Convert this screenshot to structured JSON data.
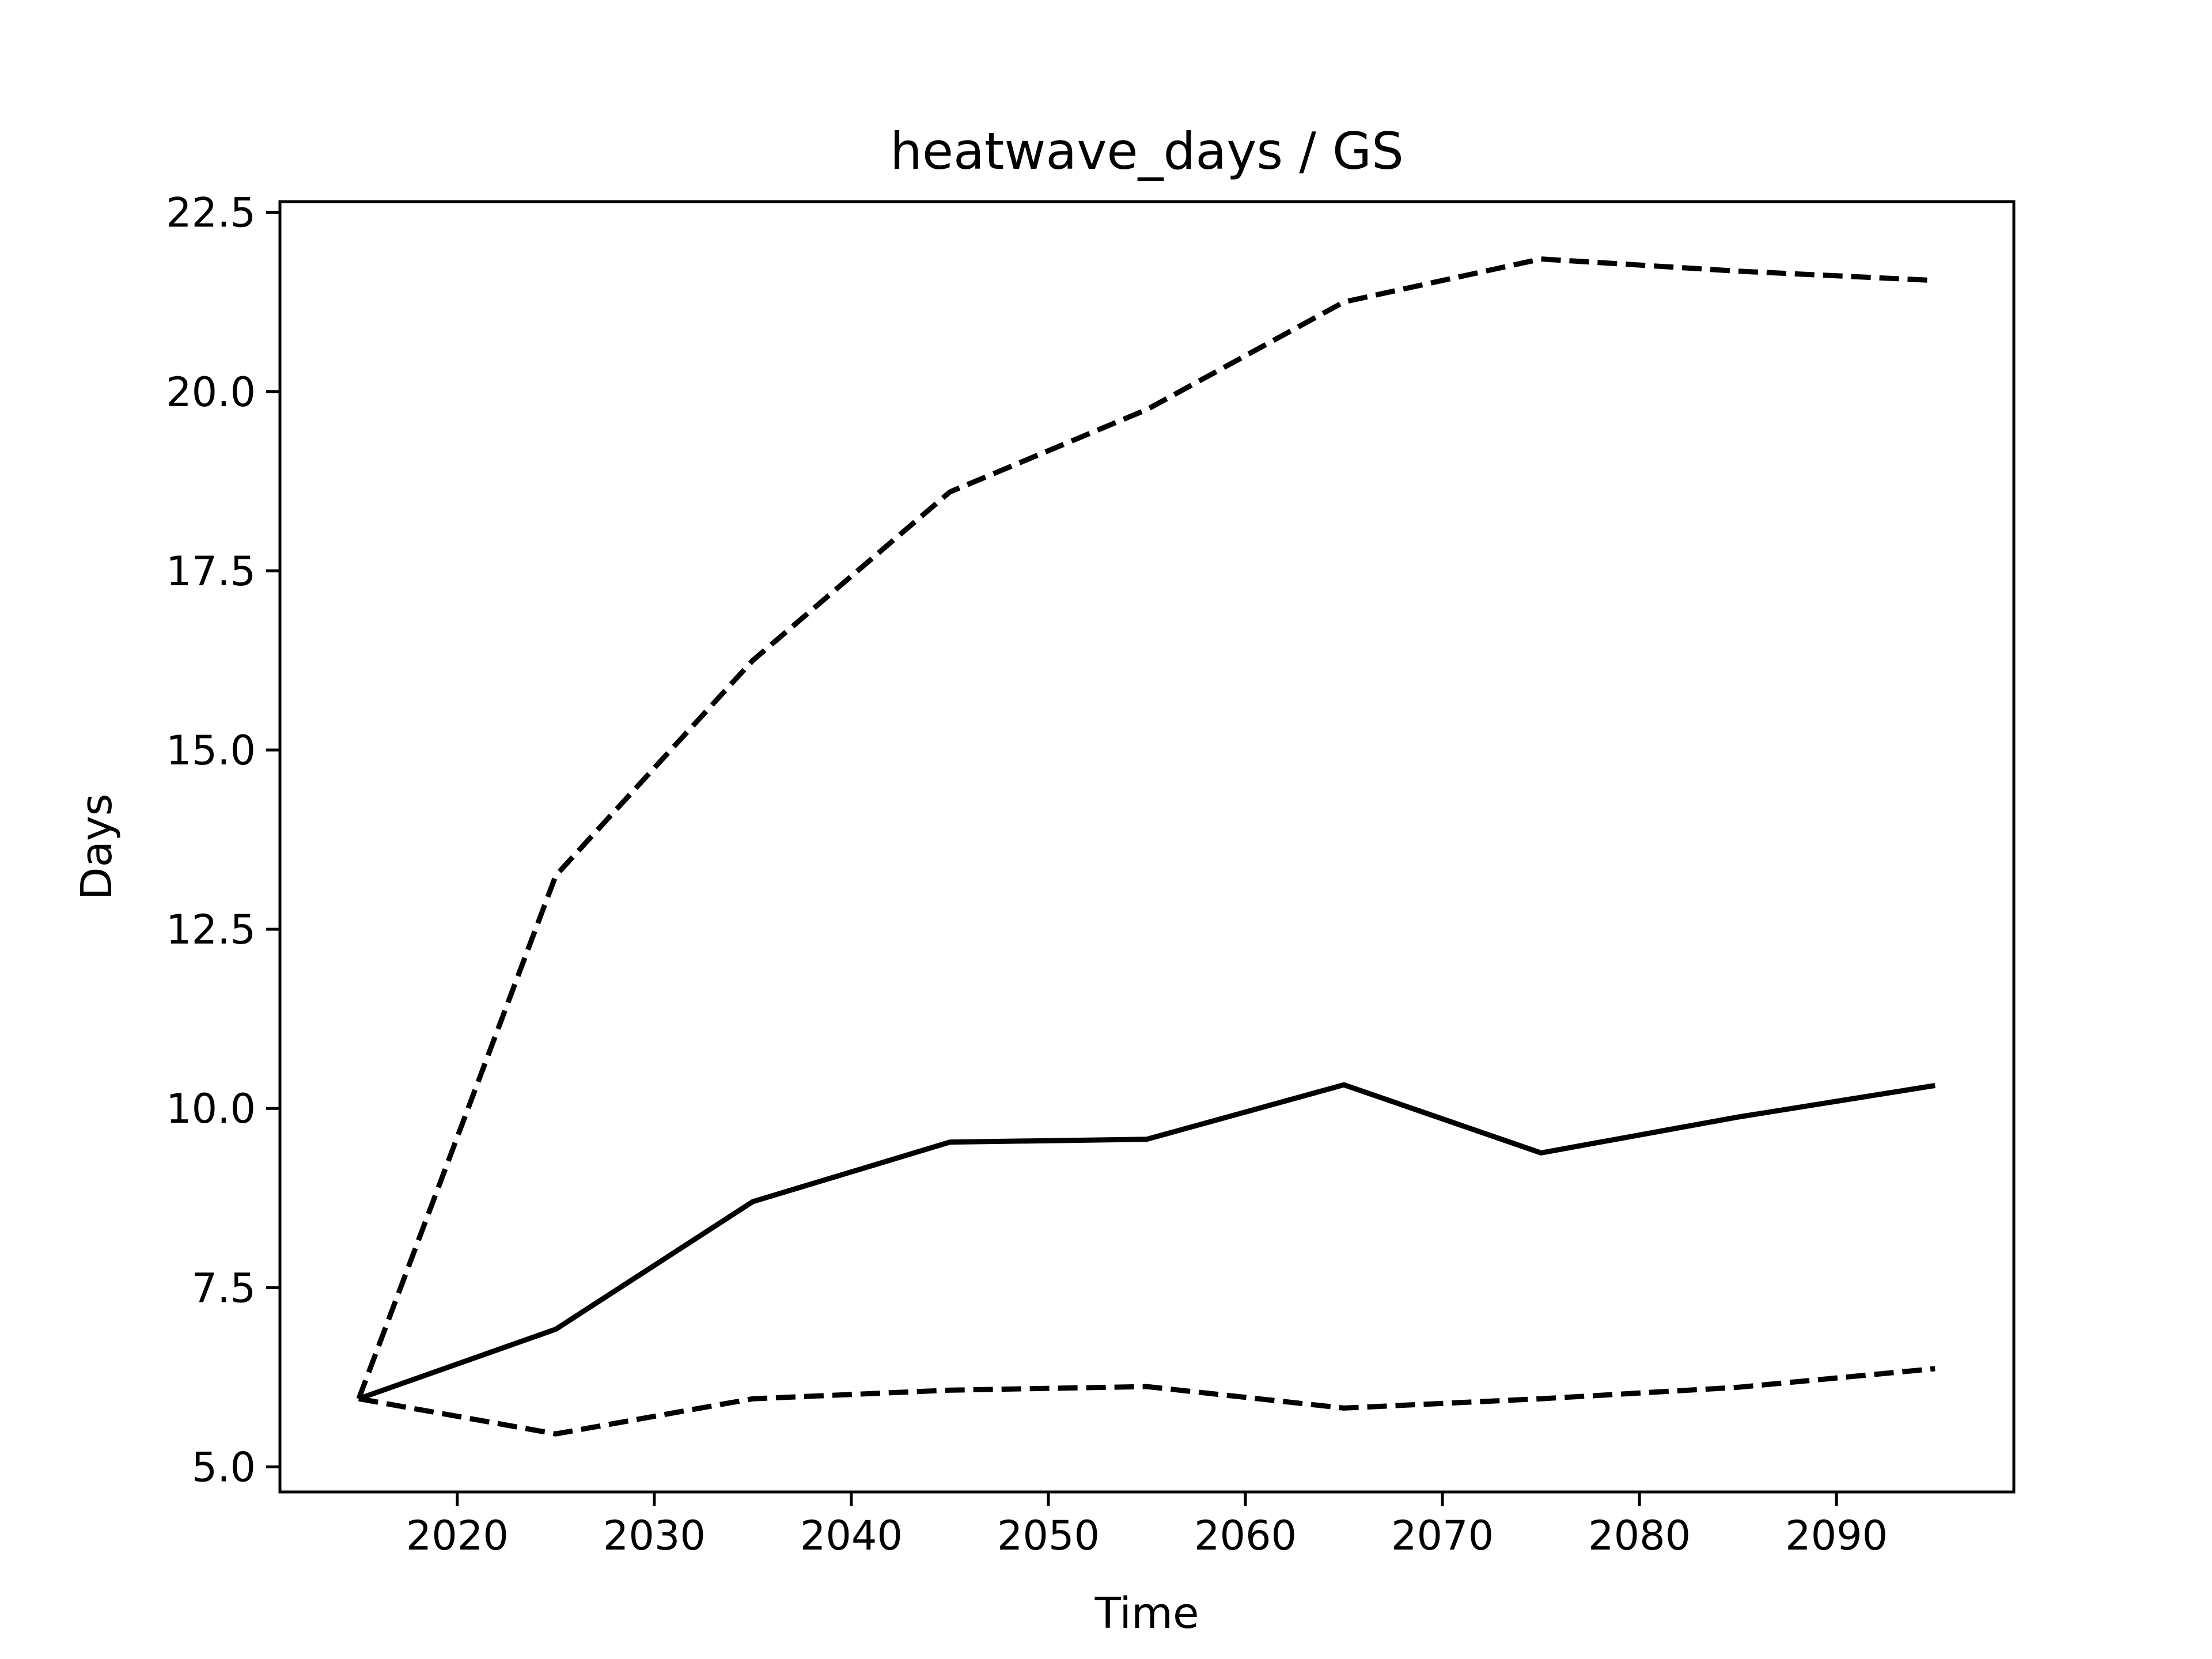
{
  "chart_data": {
    "type": "line",
    "title": "heatwave_days / GS",
    "xlabel": "Time",
    "ylabel": "Days",
    "xlim": [
      2011.0,
      2099.0
    ],
    "ylim": [
      4.65,
      22.65
    ],
    "xticks": [
      2020,
      2030,
      2040,
      2050,
      2060,
      2070,
      2080,
      2090
    ],
    "yticks": [
      5.0,
      7.5,
      10.0,
      12.5,
      15.0,
      17.5,
      20.0,
      22.5
    ],
    "ytick_labels": [
      "5.0",
      "7.5",
      "10.0",
      "12.5",
      "15.0",
      "17.5",
      "20.0",
      "22.5"
    ],
    "grid": false,
    "x": [
      2015,
      2025,
      2035,
      2045,
      2055,
      2065,
      2075,
      2085,
      2095
    ],
    "series": [
      {
        "style": "dashed",
        "color": "#000000",
        "values": [
          5.95,
          13.25,
          16.25,
          18.6,
          19.75,
          21.25,
          21.85,
          21.68,
          21.55
        ]
      },
      {
        "style": "solid",
        "color": "#000000",
        "values": [
          5.95,
          6.92,
          8.7,
          9.53,
          9.57,
          10.33,
          9.38,
          9.88,
          10.32
        ]
      },
      {
        "style": "dashed",
        "color": "#000000",
        "values": [
          5.95,
          5.46,
          5.95,
          6.07,
          6.12,
          5.82,
          5.95,
          6.11,
          6.37
        ]
      }
    ]
  }
}
